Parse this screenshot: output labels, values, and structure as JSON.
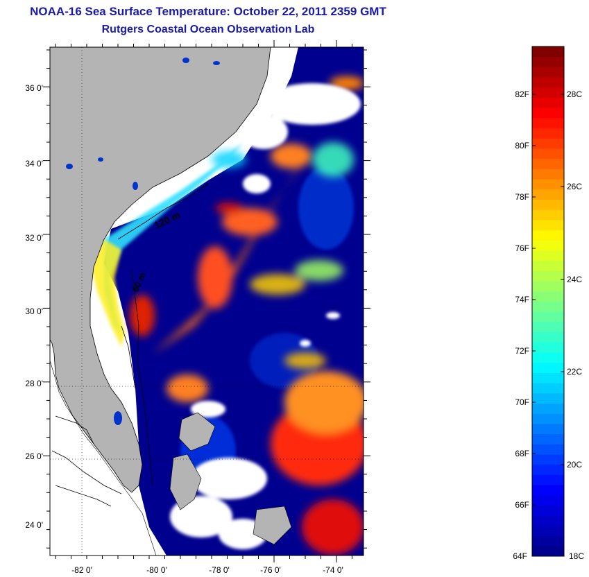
{
  "title": "NOAA-16 Sea Surface Temperature:  October 22, 2011 2359 GMT",
  "subtitle": "Rutgers Coastal Ocean Observation Lab",
  "lat_labels": [
    "36 0'",
    "34 0'",
    "32 0'",
    "30 0'",
    "28 0'",
    "26 0'",
    "24 0'"
  ],
  "lon_labels": [
    "-82 0'",
    "-80 0'",
    "-78 0'",
    "-76 0'",
    "-74 0'"
  ],
  "contour_labels": [
    "120 m",
    "60 m"
  ],
  "colorbar": {
    "fahrenheit_labels": [
      "82F",
      "80F",
      "78F",
      "76F",
      "74F",
      "72F",
      "70F",
      "68F",
      "66F",
      "64F"
    ],
    "celsius_labels": [
      "28C",
      "26C",
      "24C",
      "22C",
      "20C",
      "18C"
    ],
    "colormap": [
      "#00008f",
      "#0000ff",
      "#0080ff",
      "#00ffff",
      "#80ff80",
      "#ffff00",
      "#ff8000",
      "#ff0000",
      "#800000"
    ]
  },
  "colors": {
    "title": "#1a1aa8",
    "land": "#b4b4b4",
    "no_data": "#ffffff",
    "cold_water": "#00008f"
  }
}
